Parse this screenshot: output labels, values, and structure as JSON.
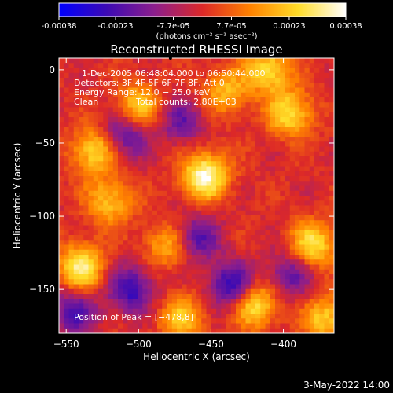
{
  "colorbar": {
    "tick_labels": [
      "-0.00038",
      "-0.00023",
      "-7.7e-05",
      "7.7e-05",
      "0.00023",
      "0.00038"
    ],
    "tick_values": [
      -0.00038,
      -0.00023,
      -7.7e-05,
      7.7e-05,
      0.00023,
      0.00038
    ],
    "range": [
      -0.00038,
      0.00038
    ],
    "units_label": "(photons cm⁻² s⁻¹ asec⁻²)",
    "colormap": [
      "#0000ff",
      "#3c0ab4",
      "#8c1e8c",
      "#dc2828",
      "#ff8200",
      "#ffdc28",
      "#ffffff"
    ]
  },
  "chart_data": {
    "type": "heatmap",
    "title": "Reconstructed RHESSI Image",
    "xlabel": "Heliocentric X (arcsec)",
    "ylabel": "Heliocentric Y (arcsec)",
    "xlim": [
      -555,
      -365
    ],
    "ylim": [
      -180,
      8
    ],
    "x_ticks": [
      -550,
      -500,
      -450,
      -400
    ],
    "x_tick_labels": [
      "−550",
      "−500",
      "−450",
      "−400"
    ],
    "y_ticks": [
      0,
      -50,
      -100,
      -150
    ],
    "y_tick_labels": [
      "0",
      "−50",
      "−100",
      "−150"
    ],
    "peak_position": [
      -478,
      8
    ],
    "bright_regions": [
      {
        "x": -454,
        "y": -72,
        "value": 0.00036
      },
      {
        "x": -540,
        "y": -135,
        "value": 0.00032
      },
      {
        "x": -530,
        "y": -55,
        "value": 0.00028
      },
      {
        "x": -420,
        "y": -160,
        "value": 0.0003
      },
      {
        "x": -380,
        "y": -120,
        "value": 0.00028
      },
      {
        "x": -395,
        "y": -30,
        "value": 0.00026
      },
      {
        "x": -410,
        "y": 0,
        "value": 0.00027
      },
      {
        "x": -500,
        "y": -25,
        "value": 0.00024
      },
      {
        "x": -470,
        "y": -170,
        "value": 0.00022
      },
      {
        "x": -520,
        "y": -90,
        "value": 0.00022
      },
      {
        "x": -480,
        "y": -120,
        "value": 0.0002
      },
      {
        "x": -370,
        "y": -170,
        "value": 0.00024
      },
      {
        "x": -440,
        "y": -15,
        "value": 0.0002
      }
    ],
    "dark_regions": [
      {
        "x": -435,
        "y": -148,
        "value": -0.0003
      },
      {
        "x": -505,
        "y": -150,
        "value": -0.00026
      },
      {
        "x": -510,
        "y": -45,
        "value": -0.00024
      },
      {
        "x": -460,
        "y": -115,
        "value": -0.00022
      },
      {
        "x": -545,
        "y": -165,
        "value": -0.00022
      },
      {
        "x": -395,
        "y": -140,
        "value": -0.0002
      },
      {
        "x": -470,
        "y": -35,
        "value": -0.00018
      }
    ]
  },
  "annotations": {
    "time_range": "1-Dec-2005 06:48:04.000 to 06:50:44.000",
    "detectors": "Detectors: 3F 4F 5F 6F 7F 8F, Att 0",
    "energy_range": "Energy Range: 12.0 − 25.0 keV",
    "clean_label": "Clean",
    "total_counts": "Total counts: 2.80E+03",
    "peak_position": "Position of Peak = [−478,8]"
  },
  "footer": {
    "timestamp": "3-May-2022 14:00"
  }
}
